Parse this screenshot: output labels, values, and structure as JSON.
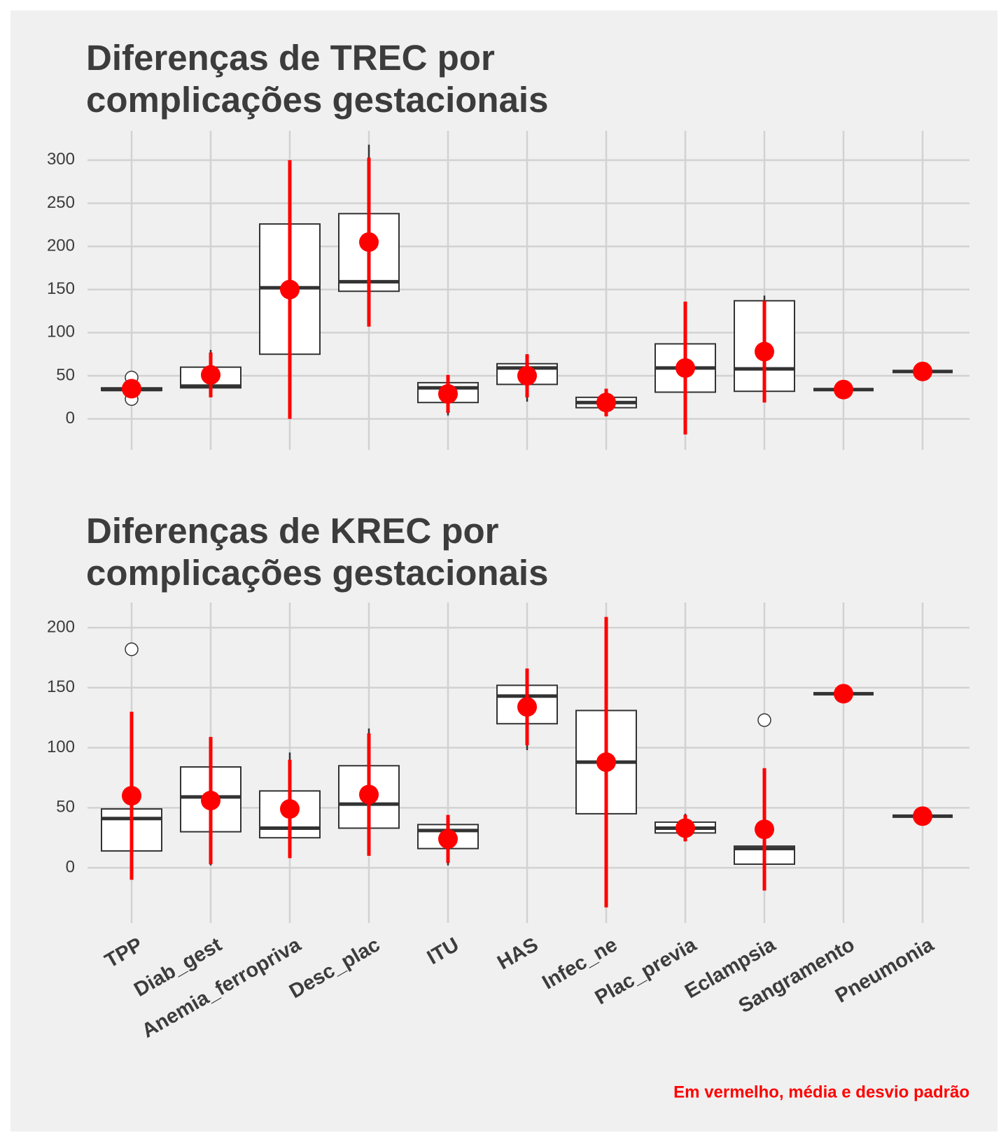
{
  "chart_data": [
    {
      "type": "box",
      "title": "Diferenças de TREC por complicações gestacionais",
      "ylim": [
        -36,
        334
      ],
      "yticks": [
        0,
        50,
        100,
        150,
        200,
        250,
        300
      ],
      "grid": true,
      "mean_color": "#ff0000",
      "boxes": [
        {
          "q1": 33,
          "median": 34,
          "q3": 36,
          "whisker_low": 30,
          "whisker_high": 38,
          "outliers": [
            23,
            48
          ],
          "mean": 35,
          "sd": 5
        },
        {
          "q1": 36,
          "median": 38,
          "q3": 60,
          "whisker_low": 36,
          "whisker_high": 80,
          "outliers": [],
          "mean": 51,
          "sd": 26
        },
        {
          "q1": 75,
          "median": 152,
          "q3": 226,
          "whisker_low": 75,
          "whisker_high": 226,
          "outliers": [],
          "mean": 150,
          "sd": 150
        },
        {
          "q1": 148,
          "median": 159,
          "q3": 238,
          "whisker_low": 148,
          "whisker_high": 318,
          "outliers": [],
          "mean": 205,
          "sd": 98
        },
        {
          "q1": 19,
          "median": 36,
          "q3": 42,
          "whisker_low": 4,
          "whisker_high": 50,
          "outliers": [],
          "mean": 29,
          "sd": 22
        },
        {
          "q1": 40,
          "median": 59,
          "q3": 64,
          "whisker_low": 20,
          "whisker_high": 75,
          "outliers": [],
          "mean": 50,
          "sd": 25
        },
        {
          "q1": 13,
          "median": 19,
          "q3": 25,
          "whisker_low": 3,
          "whisker_high": 35,
          "outliers": [],
          "mean": 19,
          "sd": 16
        },
        {
          "q1": 31,
          "median": 59,
          "q3": 87,
          "whisker_low": 31,
          "whisker_high": 87,
          "outliers": [],
          "mean": 59,
          "sd": 77
        },
        {
          "q1": 32,
          "median": 58,
          "q3": 137,
          "whisker_low": 32,
          "whisker_high": 143,
          "outliers": [],
          "mean": 78,
          "sd": 59
        },
        {
          "q1": 34,
          "median": 34,
          "q3": 34,
          "whisker_low": 34,
          "whisker_high": 34,
          "outliers": [],
          "mean": 34,
          "sd": 0
        },
        {
          "q1": 55,
          "median": 55,
          "q3": 55,
          "whisker_low": 55,
          "whisker_high": 55,
          "outliers": [],
          "mean": 55,
          "sd": 0
        }
      ]
    },
    {
      "type": "box",
      "title": "Diferenças de KREC por complicações gestacionais",
      "categories": [
        "TPP",
        "Diab_gest",
        "Anemia_ferropriva",
        "Desc_plac",
        "ITU",
        "HAS",
        "Infec_ne",
        "Plac_previa",
        "Eclampsia",
        "Sangramento",
        "Pneumonia"
      ],
      "ylim": [
        -46,
        221
      ],
      "yticks": [
        0,
        50,
        100,
        150,
        200
      ],
      "grid": true,
      "mean_color": "#ff0000",
      "boxes": [
        {
          "q1": 14,
          "median": 41,
          "q3": 49,
          "whisker_low": 14,
          "whisker_high": 49,
          "outliers": [
            182
          ],
          "mean": 60,
          "sd": 70
        },
        {
          "q1": 30,
          "median": 59,
          "q3": 84,
          "whisker_low": 2,
          "whisker_high": 84,
          "outliers": [],
          "mean": 56,
          "sd": 53
        },
        {
          "q1": 25,
          "median": 33,
          "q3": 64,
          "whisker_low": 25,
          "whisker_high": 96,
          "outliers": [],
          "mean": 49,
          "sd": 41
        },
        {
          "q1": 33,
          "median": 53,
          "q3": 85,
          "whisker_low": 33,
          "whisker_high": 116,
          "outliers": [],
          "mean": 61,
          "sd": 51
        },
        {
          "q1": 16,
          "median": 31,
          "q3": 36,
          "whisker_low": 2,
          "whisker_high": 44,
          "outliers": [],
          "mean": 24,
          "sd": 20
        },
        {
          "q1": 120,
          "median": 143,
          "q3": 152,
          "whisker_low": 98,
          "whisker_high": 166,
          "outliers": [],
          "mean": 134,
          "sd": 32
        },
        {
          "q1": 45,
          "median": 88,
          "q3": 131,
          "whisker_low": 45,
          "whisker_high": 131,
          "outliers": [],
          "mean": 88,
          "sd": 121
        },
        {
          "q1": 29,
          "median": 33,
          "q3": 38,
          "whisker_low": 22,
          "whisker_high": 45,
          "outliers": [],
          "mean": 33,
          "sd": 11
        },
        {
          "q1": 3,
          "median": 16,
          "q3": 18,
          "whisker_low": 3,
          "whisker_high": 18,
          "outliers": [
            123
          ],
          "mean": 32,
          "sd": 51
        },
        {
          "q1": 145,
          "median": 145,
          "q3": 145,
          "whisker_low": 145,
          "whisker_high": 145,
          "outliers": [],
          "mean": 145,
          "sd": 0
        },
        {
          "q1": 43,
          "median": 43,
          "q3": 43,
          "whisker_low": 43,
          "whisker_high": 43,
          "outliers": [],
          "mean": 43,
          "sd": 0
        }
      ],
      "caption": "Em vermelho, média e desvio padrão"
    }
  ]
}
